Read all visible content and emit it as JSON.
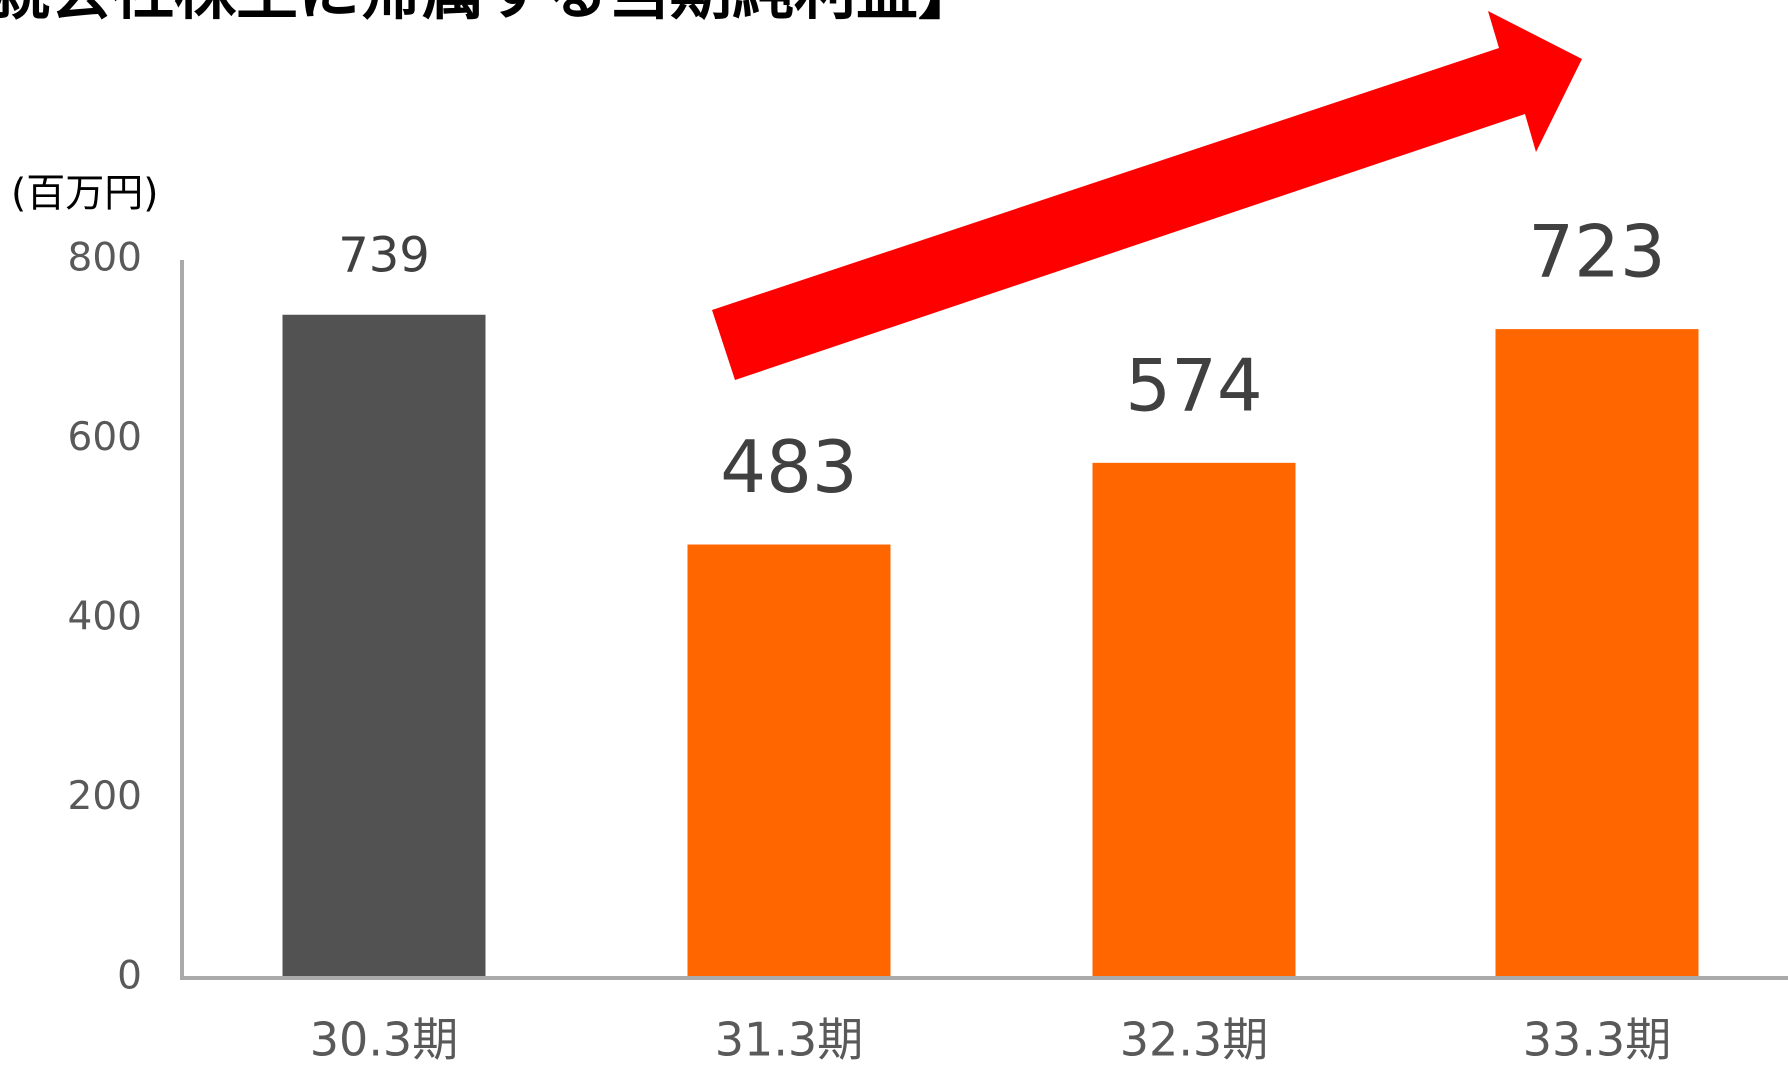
{
  "chart_data": {
    "type": "bar",
    "title": "親会社株主に帰属する当期純利益】",
    "y_label": "(百万円)",
    "categories": [
      "30.3期",
      "31.3期",
      "32.3期",
      "33.3期"
    ],
    "values": [
      739,
      483,
      574,
      723
    ],
    "colors": [
      "#525252",
      "#ff6600",
      "#ff6600",
      "#ff6600"
    ],
    "ylim": [
      0,
      800
    ],
    "yticks": [
      0,
      200,
      400,
      600,
      800
    ],
    "grid": false
  }
}
